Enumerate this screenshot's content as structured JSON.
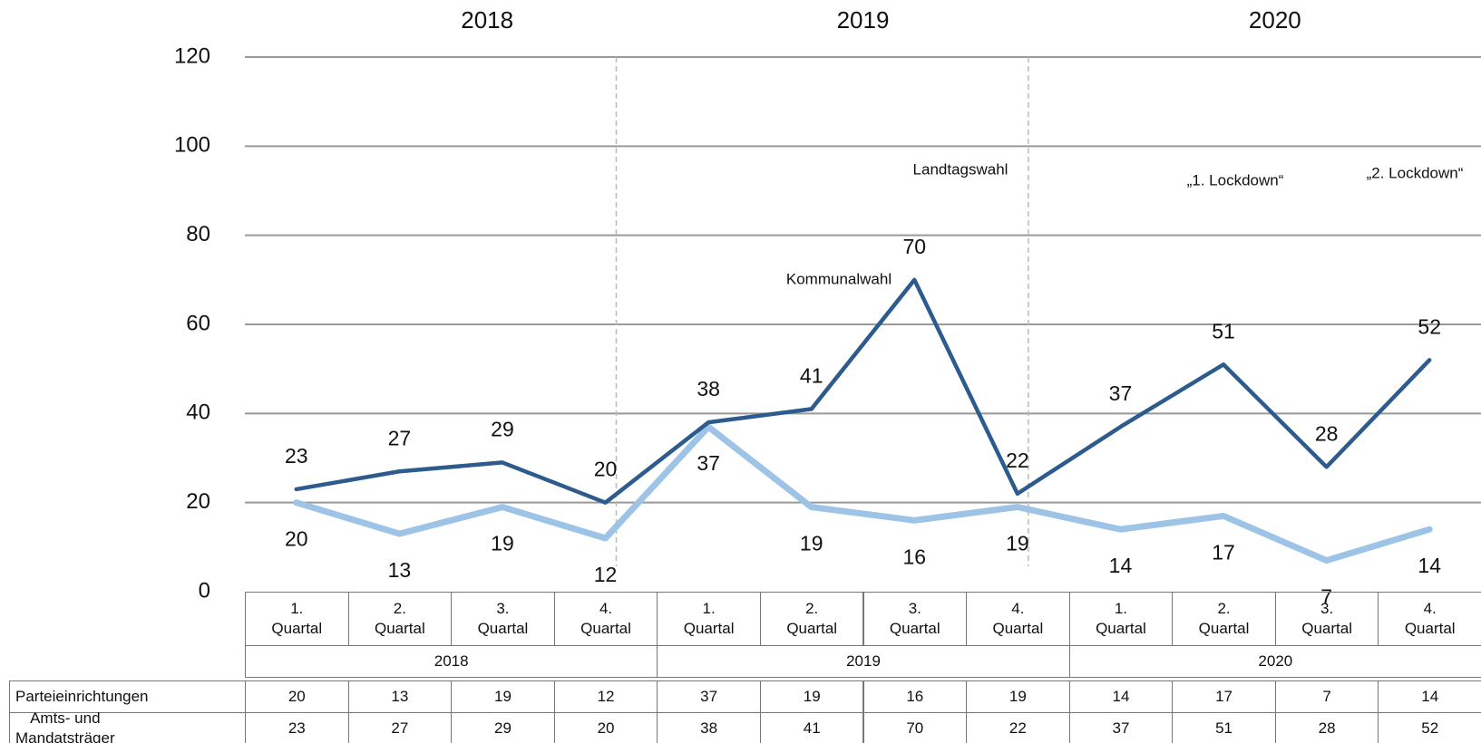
{
  "chart_data": {
    "type": "line",
    "categories": [
      "1. Quartal",
      "2. Quartal",
      "3. Quartal",
      "4. Quartal",
      "1. Quartal",
      "2. Quartal",
      "3. Quartal",
      "4. Quartal",
      "1. Quartal",
      "2. Quartal",
      "3. Quartal",
      "4. Quartal"
    ],
    "groups": [
      "2018",
      "2019",
      "2020"
    ],
    "series": [
      {
        "name": "Parteieinrichtungen",
        "color": "#9dc3e6",
        "values": [
          20,
          13,
          19,
          12,
          37,
          19,
          16,
          19,
          14,
          17,
          7,
          14
        ]
      },
      {
        "name": "Amts- und Mandatsträger",
        "color": "#2e5b8e",
        "values": [
          23,
          27,
          29,
          20,
          38,
          41,
          70,
          22,
          37,
          51,
          28,
          52
        ]
      }
    ],
    "annotations": [
      "Landtagswahl",
      "Kommunalwahl",
      "„1. Lockdown“",
      "„2. Lockdown“"
    ],
    "ylim": [
      0,
      120
    ],
    "yticks": [
      0,
      20,
      40,
      60,
      80,
      100,
      120
    ],
    "grid": true
  }
}
